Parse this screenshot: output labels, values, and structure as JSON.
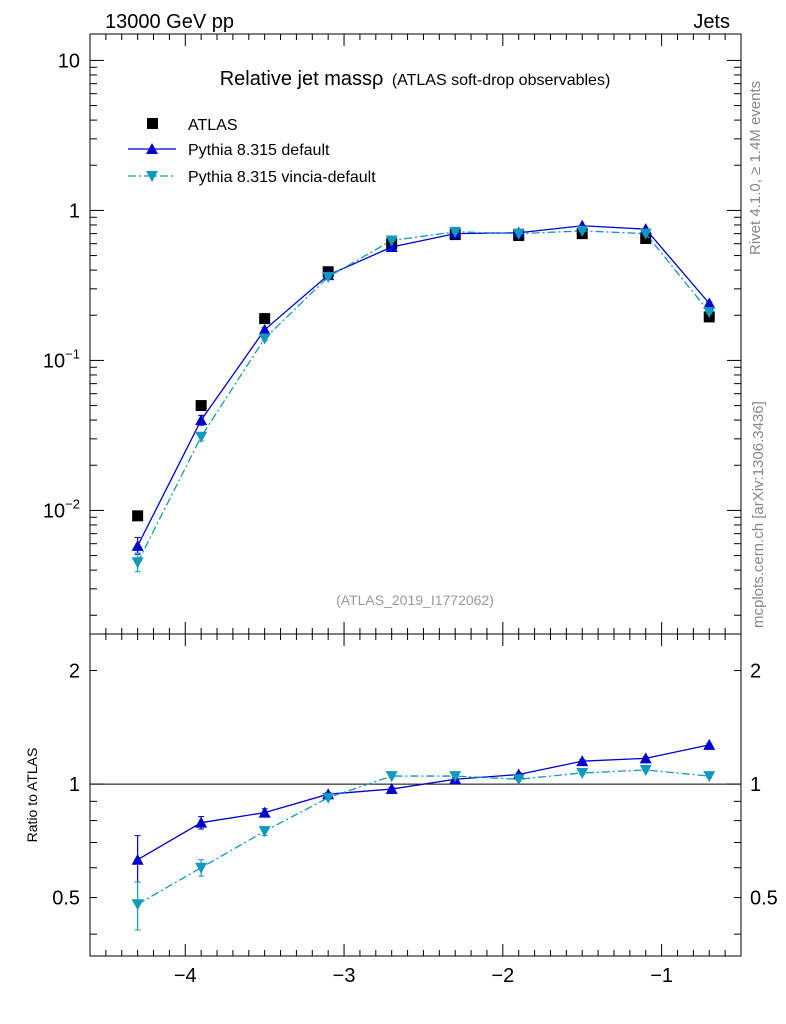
{
  "header": {
    "left": "13000 GeV pp",
    "right": "Jets"
  },
  "side_labels": {
    "rivet": "Rivet 4.1.0, ≥ 1.4M events",
    "mcplots": "mcplots.cern.ch [arXiv:1306.3436]"
  },
  "chart_data": [
    {
      "type": "line",
      "panel": "main",
      "title": "Relative jet massρ",
      "subtitle": "(ATLAS soft-drop observables)",
      "analysis_label": "(ATLAS_2019_I1772062)",
      "xlim": [
        -4.6,
        -0.5
      ],
      "ylim": [
        0.0015,
        15
      ],
      "yscale": "log",
      "x_ticks": [
        -4,
        -3,
        -2,
        -1
      ],
      "x_tick_labels": [
        "−4",
        "−3",
        "−2",
        "−1"
      ],
      "y_ticks": [
        0.01,
        0.1,
        1,
        10
      ],
      "y_tick_labels": [
        {
          "base": "10",
          "exp": "−2"
        },
        {
          "base": "10",
          "exp": "−1"
        },
        {
          "base": "1",
          "exp": ""
        },
        {
          "base": "10",
          "exp": ""
        }
      ],
      "x": [
        -4.3,
        -3.9,
        -3.5,
        -3.1,
        -2.7,
        -2.3,
        -1.9,
        -1.5,
        -1.1,
        -0.7
      ],
      "series": [
        {
          "name": "ATLAS",
          "color": "#000000",
          "marker": "square",
          "values": [
            0.0092,
            0.05,
            0.19,
            0.39,
            0.6,
            0.69,
            0.68,
            0.7,
            0.65,
            0.195
          ]
        },
        {
          "name": "Pythia 8.315 default",
          "color": "#0000cc",
          "marker": "triangle-up",
          "line": "solid",
          "values": [
            0.0058,
            0.04,
            0.16,
            0.37,
            0.57,
            0.7,
            0.71,
            0.79,
            0.75,
            0.24
          ],
          "err_lo": [
            0.0051,
            0.037,
            0.155,
            0.365,
            0.565,
            0.695,
            0.705,
            0.785,
            0.745,
            0.235
          ],
          "err_hi": [
            0.0066,
            0.043,
            0.165,
            0.375,
            0.575,
            0.705,
            0.715,
            0.795,
            0.755,
            0.245
          ]
        },
        {
          "name": "Pythia 8.315 vincia-default",
          "color": "#1199bb",
          "marker": "triangle-down",
          "line": "dashdot",
          "values": [
            0.0045,
            0.031,
            0.14,
            0.36,
            0.63,
            0.72,
            0.7,
            0.73,
            0.7,
            0.21
          ],
          "err_lo": [
            0.0039,
            0.029,
            0.135,
            0.355,
            0.625,
            0.715,
            0.695,
            0.725,
            0.695,
            0.205
          ],
          "err_hi": [
            0.0052,
            0.033,
            0.145,
            0.365,
            0.635,
            0.725,
            0.705,
            0.735,
            0.705,
            0.215
          ]
        }
      ]
    },
    {
      "type": "line",
      "panel": "ratio",
      "ylabel": "Ratio to ATLAS",
      "xlim": [
        -4.6,
        -0.5
      ],
      "ylim": [
        0.35,
        2.5
      ],
      "yscale": "log",
      "reference": 1,
      "y_ticks": [
        0.5,
        1,
        2
      ],
      "y_tick_labels": [
        "0.5",
        "1",
        "2"
      ],
      "x": [
        -4.3,
        -3.9,
        -3.5,
        -3.1,
        -2.7,
        -2.3,
        -1.9,
        -1.5,
        -1.1,
        -0.7
      ],
      "series": [
        {
          "name": "Pythia 8.315 default",
          "color": "#0000cc",
          "marker": "triangle-up",
          "line": "solid",
          "values": [
            0.63,
            0.79,
            0.84,
            0.94,
            0.97,
            1.03,
            1.06,
            1.15,
            1.17,
            1.27
          ],
          "err_lo": [
            0.55,
            0.76,
            0.82,
            0.93,
            0.96,
            1.02,
            1.05,
            1.14,
            1.16,
            1.26
          ],
          "err_hi": [
            0.73,
            0.82,
            0.86,
            0.95,
            0.98,
            1.04,
            1.07,
            1.16,
            1.18,
            1.28
          ]
        },
        {
          "name": "Pythia 8.315 vincia-default",
          "color": "#1199bb",
          "marker": "triangle-down",
          "line": "dashdot",
          "values": [
            0.48,
            0.6,
            0.75,
            0.92,
            1.05,
            1.05,
            1.03,
            1.07,
            1.09,
            1.05
          ],
          "err_lo": [
            0.41,
            0.57,
            0.73,
            0.91,
            1.04,
            1.04,
            1.02,
            1.06,
            1.08,
            1.04
          ],
          "err_hi": [
            0.55,
            0.63,
            0.77,
            0.93,
            1.06,
            1.06,
            1.04,
            1.08,
            1.1,
            1.06
          ]
        }
      ]
    }
  ]
}
